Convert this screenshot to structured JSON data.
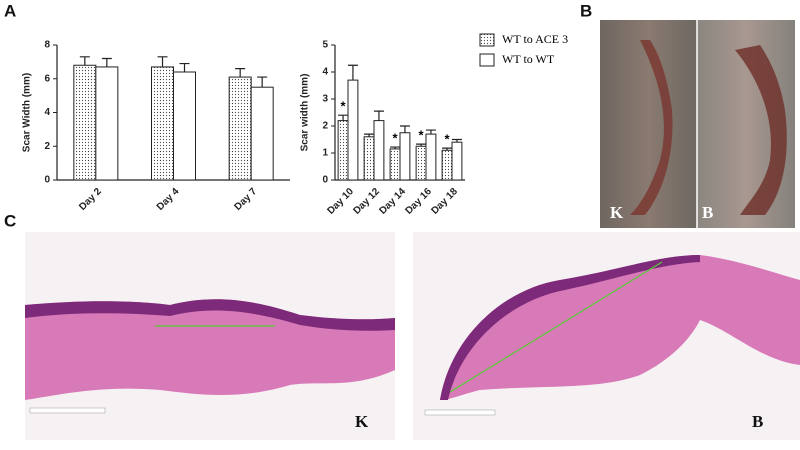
{
  "panel_labels": [
    "A",
    "B",
    "C"
  ],
  "photo": {
    "labels": [
      "K",
      "B"
    ]
  },
  "histology": {
    "labels": [
      "K",
      "B"
    ]
  },
  "chart_data": [
    {
      "type": "bar",
      "y_label": "Scar Width (mm)",
      "categories": [
        "Day 2",
        "Day 4",
        "Day 7"
      ],
      "ylim": [
        0,
        8
      ],
      "yticks": [
        0,
        2,
        4,
        6,
        8
      ],
      "series": [
        {
          "color": "#ffffff",
          "pattern": "dots",
          "values": [
            6.8,
            6.7,
            6.1
          ],
          "errors": [
            0.5,
            0.6,
            0.5
          ]
        },
        {
          "color": "#ffffff",
          "values": [
            6.7,
            6.4,
            5.5
          ],
          "errors": [
            0.5,
            0.5,
            0.6
          ]
        }
      ]
    },
    {
      "type": "bar",
      "y_label": "Scar width (mm)",
      "categories": [
        "Day 10",
        "Day 12",
        "Day 14",
        "Day 16",
        "Day 18"
      ],
      "ylim": [
        0,
        5
      ],
      "yticks": [
        0,
        1,
        2,
        3,
        4,
        5
      ],
      "legend": "right",
      "significance": [
        "*",
        null,
        "*",
        "*",
        "*"
      ],
      "series": [
        {
          "name": "WT to ACE 3",
          "color": "#ffffff",
          "pattern": "dots",
          "values": [
            2.2,
            1.6,
            1.15,
            1.25,
            1.1
          ],
          "errors": [
            0.2,
            0.1,
            0.07,
            0.08,
            0.08
          ]
        },
        {
          "name": "WT to WT",
          "color": "#ffffff",
          "values": [
            3.7,
            2.2,
            1.75,
            1.7,
            1.4
          ],
          "errors": [
            0.55,
            0.35,
            0.25,
            0.15,
            0.1
          ]
        }
      ]
    }
  ]
}
